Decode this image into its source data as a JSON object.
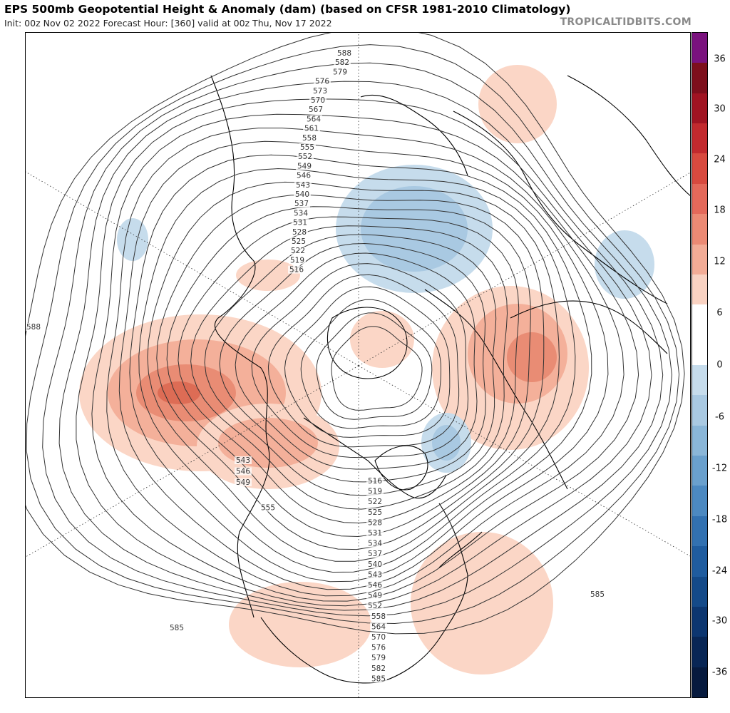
{
  "header": {
    "title": "EPS 500mb Geopotential Height & Anomaly (dam) (based on CFSR 1981-2010 Climatology)",
    "subtitle": "Init: 00z Nov 02 2022   Forecast Hour: [360]   valid at 00z Thu, Nov 17 2022",
    "watermark": "TROPICALTIDBITS.COM"
  },
  "colorbar": {
    "labels": [
      "36",
      "30",
      "24",
      "18",
      "12",
      "6",
      "0",
      "-6",
      "-12",
      "-18",
      "-24",
      "-30",
      "-36"
    ],
    "colors": [
      "#7a127e",
      "#7d0f1c",
      "#a01422",
      "#c22a2e",
      "#d84a3f",
      "#e4695a",
      "#ec8a74",
      "#f3ac96",
      "#f9d2c2",
      "#ffffff",
      "#ffffff",
      "#c6dcec",
      "#a9c9e2",
      "#8ab6d8",
      "#6aa0cd",
      "#4c89c1",
      "#3271b1",
      "#1f5c9f",
      "#144a89",
      "#0c3670",
      "#082655",
      "#061a3e"
    ]
  },
  "contours": {
    "labels": [
      "588",
      "582",
      "579",
      "576",
      "573",
      "570",
      "567",
      "564",
      "561",
      "558",
      "555",
      "552",
      "549",
      "546",
      "543",
      "540",
      "537",
      "534",
      "531",
      "528",
      "525",
      "522",
      "519",
      "516"
    ],
    "north_america_labels": [
      "516",
      "519",
      "522",
      "525",
      "528",
      "531",
      "534",
      "537",
      "540",
      "543",
      "546",
      "549",
      "552",
      "558",
      "564",
      "570",
      "576",
      "579",
      "582",
      "585"
    ],
    "pacific_labels": [
      "543",
      "546",
      "549",
      "555"
    ],
    "left_edge_label": "588",
    "right_label": "585",
    "southwest_label": "585"
  }
}
